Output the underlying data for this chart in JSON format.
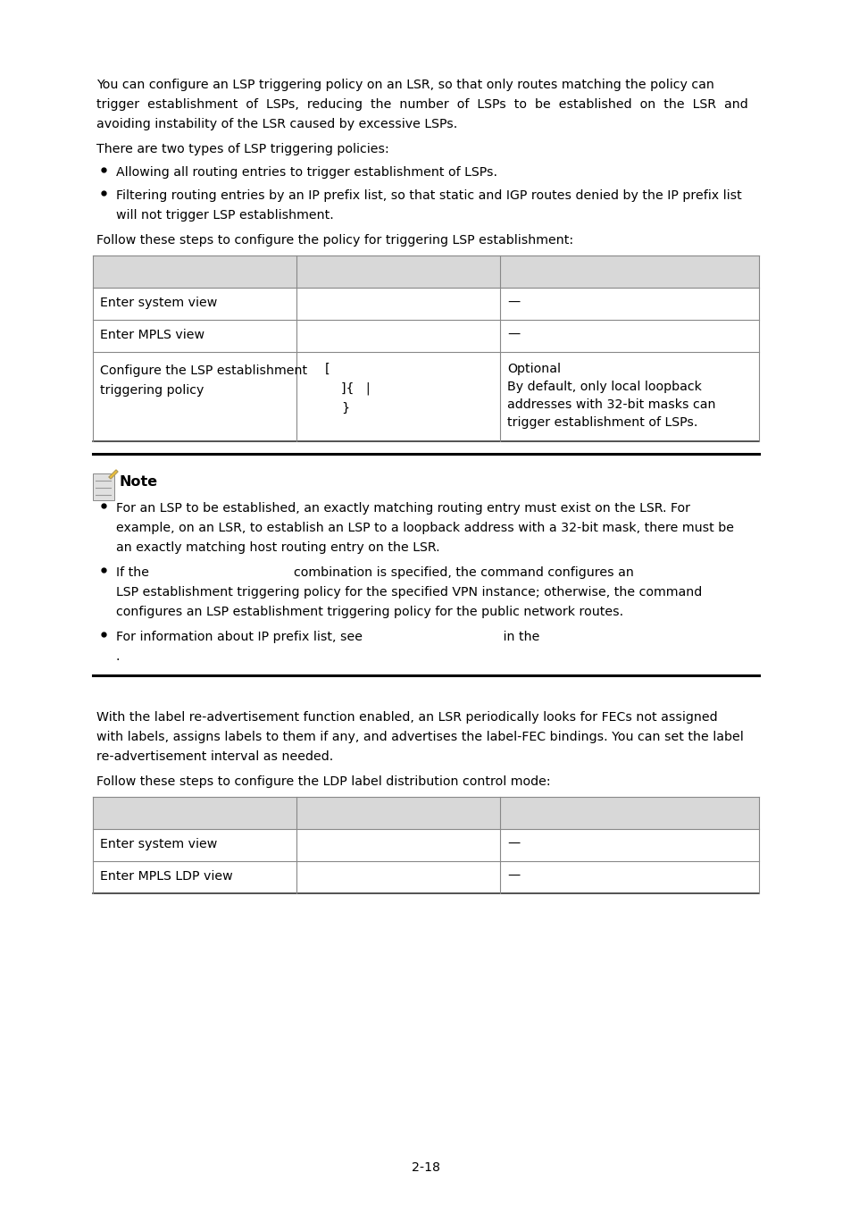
{
  "page_bg": "#ffffff",
  "text_color": "#000000",
  "paragraph1": "You can configure an LSP triggering policy on an LSR, so that only routes matching the policy can trigger establishment of LSPs, reducing the number of LSPs to be established on the LSR and avoiding instability of the LSR caused by excessive LSPs.",
  "paragraph2": "There are two types of LSP triggering policies:",
  "bullet1": "Allowing all routing entries to trigger establishment of LSPs.",
  "bullet2a": "Filtering routing entries by an IP prefix list, so that static and IGP routes denied by the IP prefix list",
  "bullet2b": "will not trigger LSP establishment.",
  "paragraph3": "Follow these steps to configure the policy for triggering LSP establishment:",
  "table1_row1_col1": "Enter system view",
  "table1_row1_col3": "—",
  "table1_row2_col1": "Enter MPLS view",
  "table1_row2_col3": "—",
  "table1_row3_col1a": "Configure the LSP establishment",
  "table1_row3_col1b": "triggering policy",
  "table1_row3_col2_line1": "[",
  "table1_row3_col2_line2": "]{   |",
  "table1_row3_col2_line3": "}",
  "table1_row3_col3_line1": "Optional",
  "table1_row3_col3_line2a": "By default, only local loopback",
  "table1_row3_col3_line2b": "addresses with 32-bit masks can",
  "table1_row3_col3_line2c": "trigger establishment of LSPs.",
  "note_title": "Note",
  "note_b1_l1": "For an LSP to be established, an exactly matching routing entry must exist on the LSR. For",
  "note_b1_l2": "example, on an LSR, to establish an LSP to a loopback address with a 32-bit mask, there must be",
  "note_b1_l3": "an exactly matching host routing entry on the LSR.",
  "note_b2_l1": "If the                                    combination is specified, the command configures an",
  "note_b2_l2": "LSP establishment triggering policy for the specified VPN instance; otherwise, the command",
  "note_b2_l3": "configures an LSP establishment triggering policy for the public network routes.",
  "note_b3_l1": "For information about IP prefix list, see                                   in the",
  "note_b3_l2": ".",
  "section2_para1a": "With the label re-advertisement function enabled, an LSR periodically looks for FECs not assigned",
  "section2_para1b": "with labels, assigns labels to them if any, and advertises the label-FEC bindings. You can set the label",
  "section2_para1c": "re-advertisement interval as needed.",
  "section2_para2": "Follow these steps to configure the LDP label distribution control mode:",
  "table2_row1_col1": "Enter system view",
  "table2_row1_col3": "—",
  "table2_row2_col1": "Enter MPLS LDP view",
  "table2_row2_col3": "—",
  "page_number": "2-18",
  "header_bg": "#d8d8d8",
  "divider_color": "#000000"
}
